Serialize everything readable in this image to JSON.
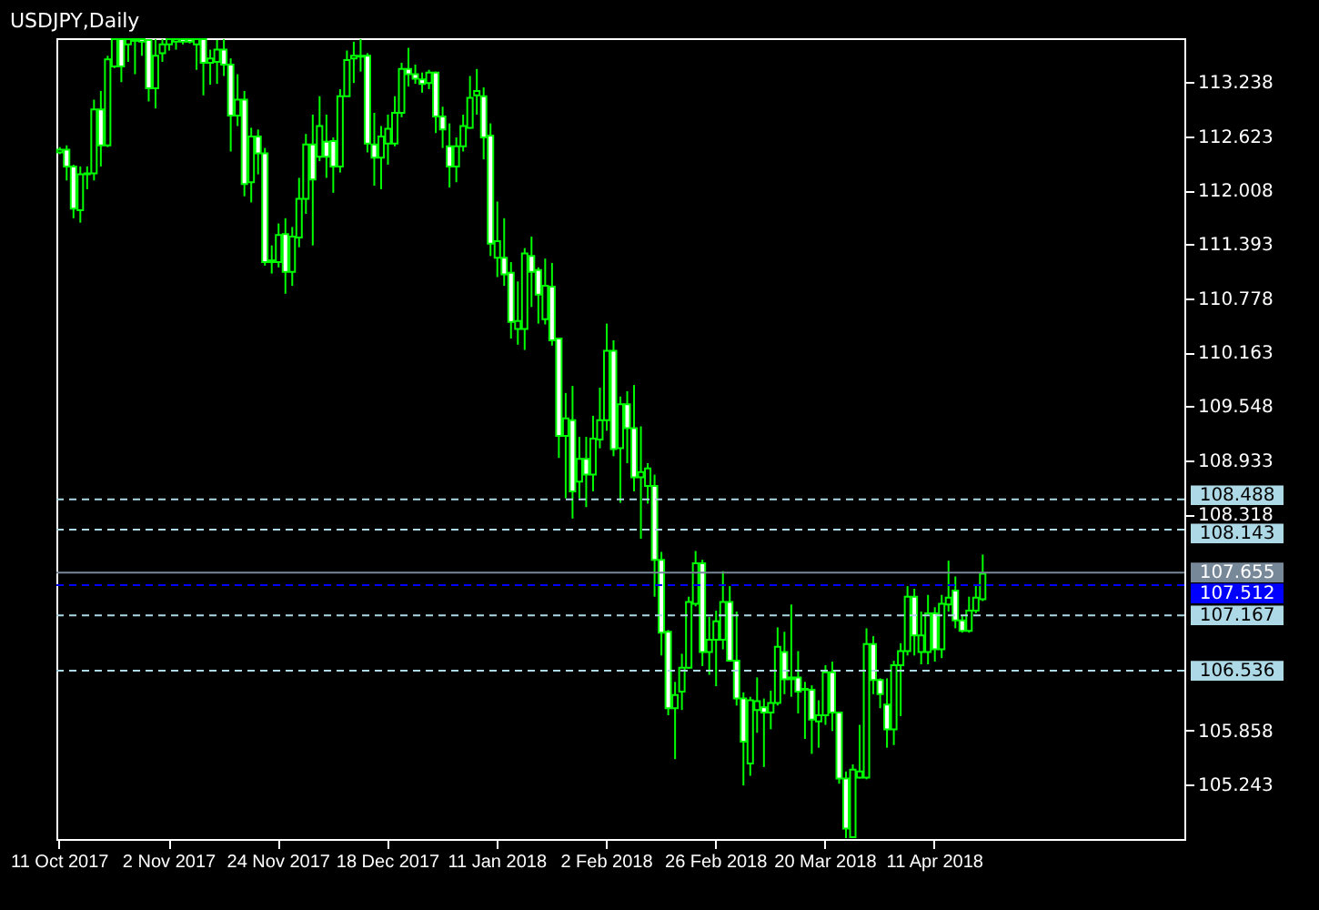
{
  "chart_data": {
    "type": "candlestick",
    "title": "USDJPY,Daily",
    "color": "#00ff00",
    "categories": [
      "11 Oct 2017",
      null,
      null,
      null,
      null,
      null,
      null,
      null,
      null,
      null,
      null,
      null,
      null,
      null,
      null,
      null,
      "2 Nov 2017",
      null,
      null,
      null,
      null,
      null,
      null,
      null,
      null,
      null,
      null,
      null,
      null,
      null,
      null,
      null,
      "24 Nov 2017",
      null,
      null,
      null,
      null,
      null,
      null,
      null,
      null,
      null,
      null,
      null,
      null,
      null,
      null,
      null,
      "18 Dec 2017",
      null,
      null,
      null,
      null,
      null,
      null,
      null,
      null,
      null,
      null,
      null,
      null,
      null,
      null,
      null,
      "11 Jan 2018",
      null,
      null,
      null,
      null,
      null,
      null,
      null,
      null,
      null,
      null,
      null,
      null,
      null,
      null,
      null,
      "2 Feb 2018",
      null,
      null,
      null,
      null,
      null,
      null,
      null,
      null,
      null,
      null,
      null,
      null,
      null,
      null,
      null,
      "26 Feb 2018",
      null,
      null,
      null,
      null,
      null,
      null,
      null,
      null,
      null,
      null,
      null,
      null,
      null,
      null,
      null,
      "20 Mar 2018",
      null,
      null,
      null,
      null,
      null,
      null,
      null,
      null,
      null,
      null,
      null,
      null,
      null,
      null,
      null,
      "11 Apr 2018",
      null,
      null,
      null,
      null,
      null,
      null,
      null,
      null,
      null,
      null,
      null,
      null,
      null,
      null,
      null,
      null,
      null,
      null,
      null,
      null,
      null,
      null,
      null,
      null,
      null,
      null,
      null,
      null,
      null,
      null,
      null,
      null,
      null,
      null,
      null,
      null
    ],
    "ohlc": [
      [
        112.44,
        112.5,
        112.42,
        112.47
      ],
      [
        112.47,
        112.52,
        112.12,
        112.28
      ],
      [
        112.28,
        112.3,
        111.69,
        111.8
      ],
      [
        111.78,
        112.28,
        111.64,
        112.19
      ],
      [
        112.19,
        112.28,
        112.02,
        112.2
      ],
      [
        112.2,
        113.04,
        112.12,
        112.93
      ],
      [
        112.93,
        113.14,
        112.28,
        112.52
      ],
      [
        112.52,
        113.54,
        112.5,
        113.5
      ],
      [
        113.42,
        113.73,
        113.4,
        113.73
      ],
      [
        113.73,
        113.73,
        113.24,
        113.42
      ],
      [
        113.67,
        113.73,
        113.47,
        113.73
      ],
      [
        113.71,
        113.73,
        113.33,
        113.73
      ],
      [
        113.73,
        113.73,
        113.54,
        113.7
      ],
      [
        113.72,
        113.73,
        113.02,
        113.17
      ],
      [
        113.17,
        113.73,
        112.94,
        113.54
      ],
      [
        113.57,
        113.73,
        113.47,
        113.67
      ],
      [
        113.67,
        113.73,
        113.6,
        113.73
      ],
      [
        113.7,
        113.73,
        113.61,
        113.73
      ],
      [
        113.73,
        113.73,
        113.67,
        113.7
      ],
      [
        113.73,
        113.73,
        113.68,
        113.7
      ],
      [
        113.67,
        113.73,
        113.38,
        113.73
      ],
      [
        113.73,
        113.73,
        113.09,
        113.46
      ],
      [
        113.46,
        113.61,
        113.21,
        113.51
      ],
      [
        113.47,
        113.72,
        113.22,
        113.61
      ],
      [
        113.61,
        113.73,
        113.31,
        113.44
      ],
      [
        113.44,
        113.51,
        112.45,
        112.86
      ],
      [
        112.86,
        113.33,
        112.74,
        113.04
      ],
      [
        113.04,
        113.14,
        111.94,
        112.08
      ],
      [
        112.1,
        112.72,
        111.87,
        112.62
      ],
      [
        112.62,
        112.7,
        112.19,
        112.43
      ],
      [
        112.43,
        112.49,
        111.15,
        111.19
      ],
      [
        111.19,
        111.38,
        111.06,
        111.21
      ],
      [
        111.19,
        111.63,
        111.13,
        111.5
      ],
      [
        111.51,
        111.69,
        110.83,
        111.08
      ],
      [
        111.08,
        111.59,
        110.92,
        111.48
      ],
      [
        111.47,
        112.15,
        111.36,
        111.91
      ],
      [
        111.91,
        112.65,
        111.74,
        112.53
      ],
      [
        112.53,
        112.87,
        111.38,
        112.13
      ],
      [
        112.39,
        113.08,
        112.34,
        112.74
      ],
      [
        112.56,
        112.87,
        112.15,
        112.39
      ],
      [
        112.57,
        112.61,
        111.98,
        112.28
      ],
      [
        112.28,
        113.16,
        112.21,
        113.08
      ],
      [
        113.08,
        113.6,
        113.08,
        113.49
      ],
      [
        113.51,
        113.7,
        113.23,
        113.54
      ],
      [
        113.54,
        113.73,
        113.36,
        113.53
      ],
      [
        113.54,
        113.57,
        112.44,
        112.54
      ],
      [
        112.53,
        112.89,
        112.06,
        112.38
      ],
      [
        112.38,
        112.74,
        112.02,
        112.62
      ],
      [
        112.54,
        112.87,
        112.3,
        112.71
      ],
      [
        112.54,
        113.08,
        112.51,
        112.89
      ],
      [
        112.89,
        113.46,
        112.84,
        113.39
      ],
      [
        113.39,
        113.63,
        113.19,
        113.33
      ],
      [
        113.33,
        113.44,
        113.22,
        113.28
      ],
      [
        113.27,
        113.35,
        113.12,
        113.22
      ],
      [
        113.23,
        113.38,
        113.16,
        113.35
      ],
      [
        113.35,
        113.36,
        112.66,
        112.85
      ],
      [
        112.85,
        112.96,
        112.49,
        112.7
      ],
      [
        112.51,
        112.77,
        112.04,
        112.28
      ],
      [
        112.28,
        112.61,
        112.1,
        112.51
      ],
      [
        112.51,
        112.87,
        112.45,
        112.74
      ],
      [
        112.72,
        113.31,
        112.71,
        113.06
      ],
      [
        113.09,
        113.39,
        112.87,
        113.14
      ],
      [
        113.08,
        113.18,
        112.36,
        112.61
      ],
      [
        112.63,
        112.77,
        111.26,
        111.4
      ],
      [
        111.24,
        111.88,
        111.02,
        111.43
      ],
      [
        111.24,
        111.69,
        110.92,
        111.05
      ],
      [
        111.07,
        111.19,
        110.32,
        110.51
      ],
      [
        110.43,
        110.97,
        110.25,
        110.52
      ],
      [
        110.43,
        111.35,
        110.19,
        111.29
      ],
      [
        111.26,
        111.48,
        110.68,
        111.08
      ],
      [
        111.1,
        111.13,
        110.49,
        110.82
      ],
      [
        110.54,
        111.23,
        110.48,
        110.92
      ],
      [
        110.91,
        111.18,
        110.24,
        110.3
      ],
      [
        110.32,
        110.33,
        108.96,
        109.21
      ],
      [
        109.21,
        109.7,
        108.5,
        109.41
      ],
      [
        109.39,
        109.78,
        108.27,
        108.58
      ],
      [
        108.69,
        109.2,
        108.5,
        108.95
      ],
      [
        108.95,
        109.2,
        108.4,
        108.77
      ],
      [
        108.77,
        109.44,
        108.58,
        109.18
      ],
      [
        109.17,
        109.76,
        109.07,
        109.39
      ],
      [
        109.39,
        110.49,
        109.27,
        110.18
      ],
      [
        110.18,
        110.3,
        108.98,
        109.06
      ],
      [
        109.07,
        109.66,
        108.45,
        109.57
      ],
      [
        109.57,
        109.72,
        108.9,
        109.3
      ],
      [
        109.3,
        109.79,
        108.58,
        108.74
      ],
      [
        108.74,
        109.32,
        108.04,
        108.8
      ],
      [
        108.64,
        108.9,
        108.44,
        108.84
      ],
      [
        108.64,
        108.77,
        107.38,
        107.8
      ],
      [
        107.8,
        107.89,
        106.71,
        106.97
      ],
      [
        106.98,
        107,
        106.03,
        106.11
      ],
      [
        106.11,
        106.41,
        105.53,
        106.26
      ],
      [
        106.3,
        106.73,
        106.09,
        106.57
      ],
      [
        106.57,
        107.38,
        106.56,
        107.32
      ],
      [
        107.3,
        107.9,
        107.27,
        107.76
      ],
      [
        107.76,
        107.8,
        106.59,
        106.75
      ],
      [
        106.75,
        107.15,
        106.49,
        106.89
      ],
      [
        106.89,
        107.22,
        106.36,
        107.1
      ],
      [
        106.89,
        107.67,
        106.78,
        107.32
      ],
      [
        107.32,
        107.5,
        106.64,
        106.65
      ],
      [
        106.65,
        107.21,
        106.14,
        106.22
      ],
      [
        106.22,
        106.29,
        105.23,
        105.73
      ],
      [
        105.48,
        106.24,
        105.34,
        106.2
      ],
      [
        106.09,
        106.46,
        105.83,
        106.19
      ],
      [
        106.12,
        106.22,
        105.44,
        106.06
      ],
      [
        106.06,
        106.31,
        105.87,
        106.17
      ],
      [
        106.17,
        107.03,
        106.14,
        106.81
      ],
      [
        106.75,
        106.98,
        106.27,
        106.44
      ],
      [
        106.44,
        107.29,
        106.24,
        106.46
      ],
      [
        106.46,
        106.76,
        106.05,
        106.3
      ],
      [
        106.32,
        106.41,
        105.76,
        106.33
      ],
      [
        106.32,
        106.37,
        105.59,
        105.98
      ],
      [
        105.96,
        106.2,
        105.66,
        106.03
      ],
      [
        106.03,
        106.6,
        105.92,
        106.52
      ],
      [
        106.52,
        106.64,
        105.85,
        106.06
      ],
      [
        106.06,
        106.06,
        105.25,
        105.31
      ],
      [
        105.31,
        105.39,
        104.63,
        104.74
      ],
      [
        104.64,
        105.47,
        104.63,
        105.41
      ],
      [
        105.32,
        105.92,
        105.31,
        105.39
      ],
      [
        105.32,
        107.02,
        105.3,
        106.84
      ],
      [
        106.84,
        106.93,
        106.27,
        106.43
      ],
      [
        106.43,
        106.45,
        106.11,
        106.27
      ],
      [
        106.15,
        106.45,
        105.66,
        105.87
      ],
      [
        105.87,
        106.65,
        105.69,
        106.6
      ],
      [
        106.6,
        106.85,
        106.02,
        106.76
      ],
      [
        106.76,
        107.5,
        106.71,
        107.38
      ],
      [
        107.38,
        107.47,
        106.71,
        106.94
      ],
      [
        106.75,
        107.21,
        106.61,
        106.94
      ],
      [
        106.75,
        107.4,
        106.61,
        107.19
      ],
      [
        107.19,
        107.26,
        106.64,
        106.78
      ],
      [
        106.78,
        107.4,
        106.68,
        107.3
      ],
      [
        107.29,
        107.79,
        107.21,
        107.37
      ],
      [
        107.45,
        107.61,
        107.02,
        107.11
      ],
      [
        107.11,
        107.17,
        106.97,
        106.99
      ],
      [
        106.99,
        107.38,
        106.97,
        107.22
      ],
      [
        107.22,
        107.51,
        107.19,
        107.37
      ],
      [
        107.35,
        107.86,
        107.33,
        107.64
      ],
      null,
      null,
      null,
      null,
      null,
      null,
      null,
      null,
      null,
      null,
      null,
      null,
      null,
      null,
      null,
      null,
      null,
      null,
      null,
      null,
      null,
      null,
      null,
      null,
      null,
      null,
      null,
      null,
      null
    ],
    "ylim": [
      104.62,
      113.74
    ],
    "yticks": [
      113.238,
      112.623,
      112.008,
      111.393,
      110.778,
      110.163,
      109.548,
      108.933,
      108.318,
      105.858,
      105.243
    ],
    "ref_lines": [
      {
        "axis": "y",
        "value": 108.488,
        "label": "108.488",
        "color": "#add8e6",
        "line_style": "dashed"
      },
      {
        "axis": "y",
        "value": 108.143,
        "label": "108.143",
        "color": "#add8e6",
        "line_style": "dashed"
      },
      {
        "axis": "y",
        "value": 107.655,
        "label": "107.655",
        "color": "#778899",
        "line_style": "solid"
      },
      {
        "axis": "y",
        "value": 107.512,
        "label": "107.512",
        "color": "#0000ff",
        "line_style": "dashed"
      },
      {
        "axis": "y",
        "value": 107.167,
        "label": "107.167",
        "color": "#add8e6",
        "line_style": "dashed"
      },
      {
        "axis": "y",
        "value": 106.536,
        "label": "106.536",
        "color": "#add8e6",
        "line_style": "dashed"
      }
    ]
  }
}
